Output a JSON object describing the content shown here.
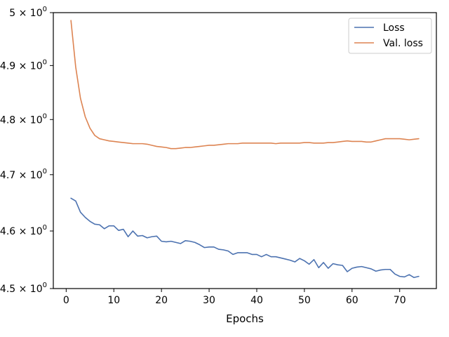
{
  "chart_data": {
    "type": "line",
    "xlabel": "Epochs",
    "ylabel": "",
    "title": "",
    "yscale": "log",
    "xlim": [
      -2.7,
      77.7
    ],
    "ylim": [
      4.5,
      5.0
    ],
    "xticks": [
      0,
      10,
      20,
      30,
      40,
      50,
      60,
      70
    ],
    "yticks": [
      {
        "value": 4.5,
        "mantissa": "4.5",
        "exp": "0"
      },
      {
        "value": 4.6,
        "mantissa": "4.6",
        "exp": "0"
      },
      {
        "value": 4.7,
        "mantissa": "4.7",
        "exp": "0"
      },
      {
        "value": 4.8,
        "mantissa": "4.8",
        "exp": "0"
      },
      {
        "value": 4.9,
        "mantissa": "4.9",
        "exp": "0"
      },
      {
        "value": 5.0,
        "mantissa": "5",
        "exp": "0"
      }
    ],
    "grid": false,
    "legend_position": "top-right",
    "x": [
      1,
      2,
      3,
      4,
      5,
      6,
      7,
      8,
      9,
      10,
      11,
      12,
      13,
      14,
      15,
      16,
      17,
      18,
      19,
      20,
      21,
      22,
      23,
      24,
      25,
      26,
      27,
      28,
      29,
      30,
      31,
      32,
      33,
      34,
      35,
      36,
      37,
      38,
      39,
      40,
      41,
      42,
      43,
      44,
      45,
      46,
      47,
      48,
      49,
      50,
      51,
      52,
      53,
      54,
      55,
      56,
      57,
      58,
      59,
      60,
      61,
      62,
      63,
      64,
      65,
      66,
      67,
      68,
      69,
      70,
      71,
      72,
      73,
      74
    ],
    "series": [
      {
        "name": "Loss",
        "color": "#4c72b0",
        "values": [
          4.658,
          4.653,
          4.633,
          4.624,
          4.617,
          4.612,
          4.611,
          4.604,
          4.609,
          4.609,
          4.601,
          4.603,
          4.59,
          4.6,
          4.591,
          4.592,
          4.588,
          4.59,
          4.591,
          4.582,
          4.581,
          4.582,
          4.58,
          4.578,
          4.583,
          4.582,
          4.58,
          4.576,
          4.571,
          4.572,
          4.572,
          4.568,
          4.567,
          4.565,
          4.559,
          4.562,
          4.562,
          4.562,
          4.559,
          4.559,
          4.555,
          4.559,
          4.555,
          4.555,
          4.553,
          4.551,
          4.549,
          4.546,
          4.552,
          4.548,
          4.542,
          4.55,
          4.536,
          4.545,
          4.535,
          4.543,
          4.541,
          4.54,
          4.529,
          4.535,
          4.537,
          4.538,
          4.536,
          4.534,
          4.53,
          4.532,
          4.533,
          4.533,
          4.525,
          4.521,
          4.52,
          4.524,
          4.519,
          4.521
        ]
      },
      {
        "name": "Val. loss",
        "color": "#dd8452",
        "values": [
          4.985,
          4.897,
          4.839,
          4.805,
          4.784,
          4.771,
          4.765,
          4.763,
          4.761,
          4.76,
          4.759,
          4.758,
          4.757,
          4.756,
          4.756,
          4.756,
          4.755,
          4.753,
          4.751,
          4.75,
          4.749,
          4.747,
          4.747,
          4.748,
          4.749,
          4.749,
          4.75,
          4.751,
          4.752,
          4.753,
          4.753,
          4.754,
          4.755,
          4.756,
          4.756,
          4.756,
          4.757,
          4.757,
          4.757,
          4.757,
          4.757,
          4.757,
          4.757,
          4.756,
          4.757,
          4.757,
          4.757,
          4.757,
          4.757,
          4.758,
          4.758,
          4.757,
          4.757,
          4.757,
          4.758,
          4.758,
          4.759,
          4.76,
          4.761,
          4.76,
          4.76,
          4.76,
          4.759,
          4.759,
          4.761,
          4.763,
          4.765,
          4.765,
          4.765,
          4.765,
          4.764,
          4.763,
          4.764,
          4.765
        ]
      }
    ]
  }
}
